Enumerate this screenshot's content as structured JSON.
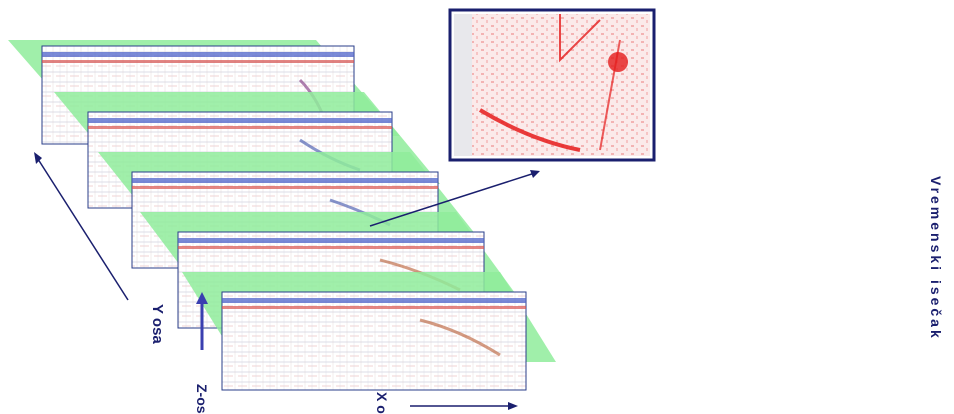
{
  "labels": {
    "y_axis": "Y osa",
    "z_axis": "Z-osa",
    "x_axis": "X osa",
    "time_slice": "Vremenski isečak"
  },
  "colors": {
    "plane": "#8fec9b",
    "axis": "#1a1f6e",
    "slice_frame": "#2a3d8a",
    "blue_band": "#4d63c9",
    "red_band": "#d9534f",
    "timeslice_red": "#e51b1b"
  }
}
